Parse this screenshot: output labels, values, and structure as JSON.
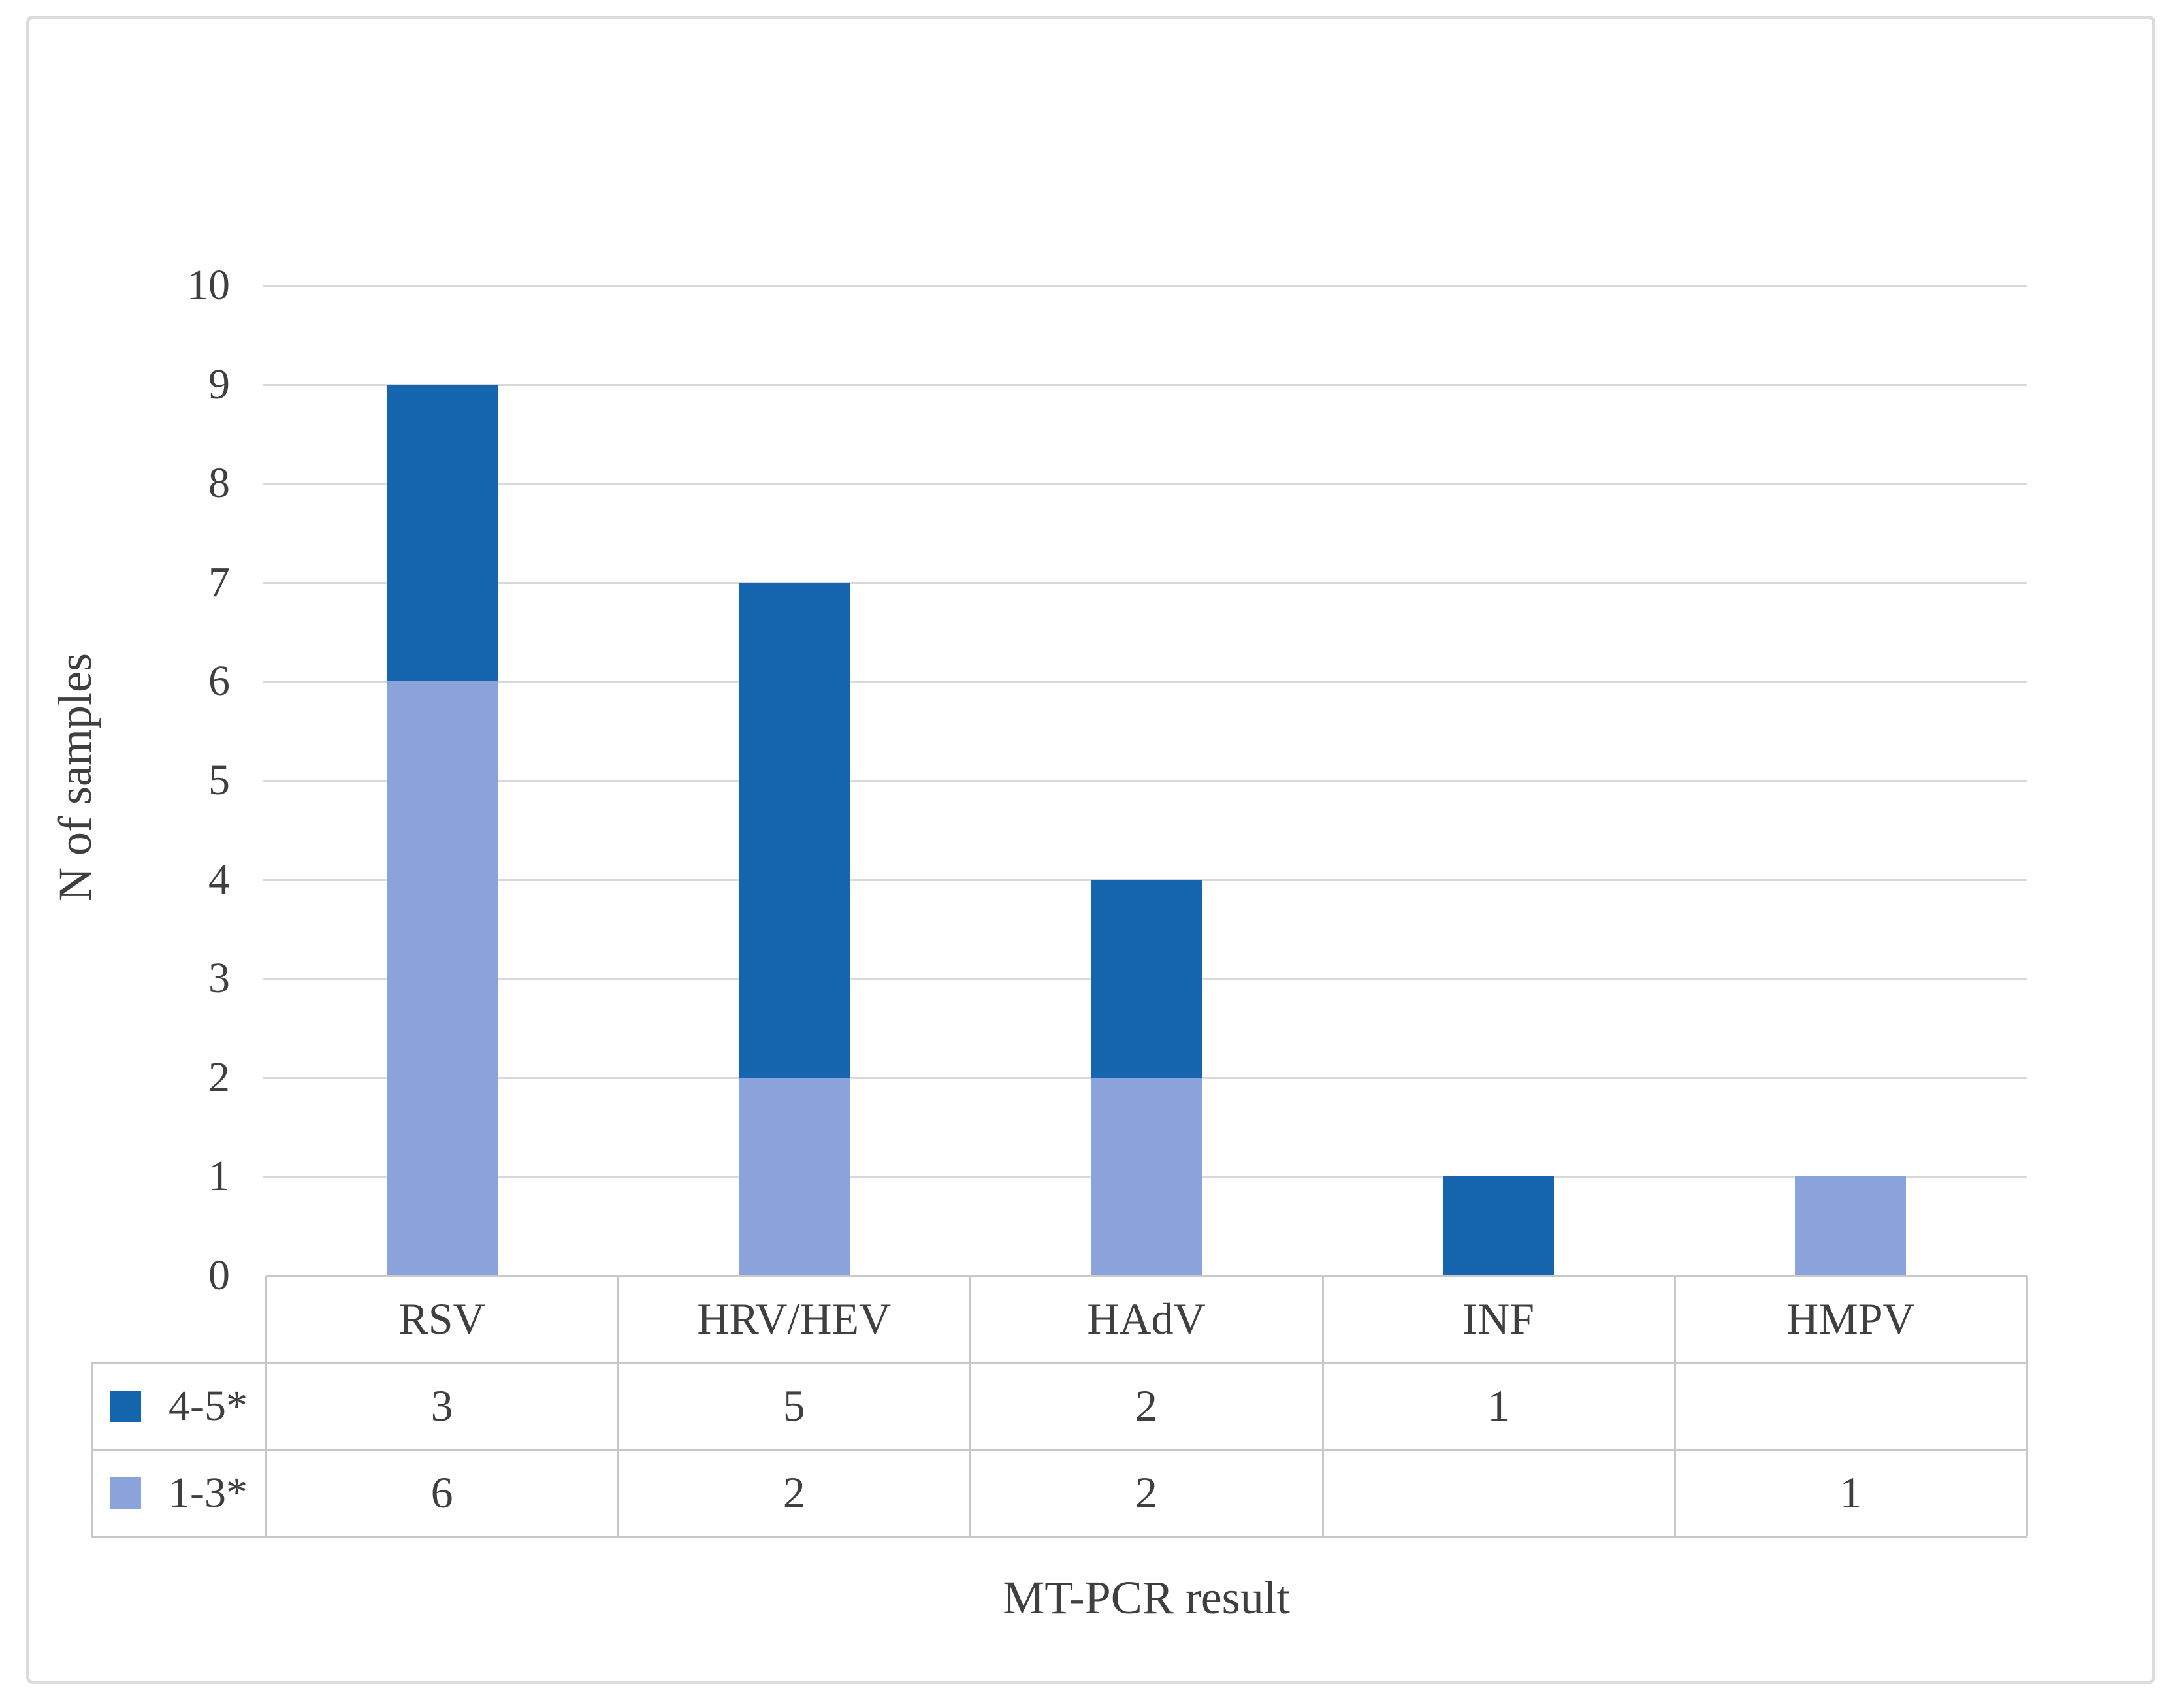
{
  "figure": {
    "background": "#ffffff",
    "frame_border_color": "#dcdcdc"
  },
  "chart_data": {
    "type": "bar",
    "stacked": true,
    "categories": [
      "RSV",
      "HRV/HEV",
      "HAdV",
      "INF",
      "HMPV"
    ],
    "series": [
      {
        "name": "4-5*",
        "color": "#1565AF",
        "values": [
          3,
          5,
          2,
          1,
          null
        ]
      },
      {
        "name": "1-3*",
        "color": "#8AA4DB",
        "values": [
          6,
          2,
          2,
          null,
          1
        ]
      }
    ],
    "stack_order_bottom_to_top": [
      "1-3*",
      "4-5*"
    ],
    "xlabel": "MT-PCR result",
    "ylabel": "N of samples",
    "ylim": [
      0,
      10
    ],
    "yticks": [
      0,
      1,
      2,
      3,
      4,
      5,
      6,
      7,
      8,
      9,
      10
    ],
    "grid": true,
    "gridline_color": "#d9d9d9",
    "table_border_color": "#c8c8c8",
    "text_color": "#3f3f3f",
    "legend_position": "data-table-left",
    "data_table": {
      "header_row": [
        "RSV",
        "HRV/HEV",
        "HAdV",
        "INF",
        "HMPV"
      ],
      "rows": [
        {
          "legend": "4-5*",
          "cells": [
            "3",
            "5",
            "2",
            "1",
            ""
          ]
        },
        {
          "legend": "1-3*",
          "cells": [
            "6",
            "2",
            "2",
            "",
            "1"
          ]
        }
      ]
    }
  }
}
